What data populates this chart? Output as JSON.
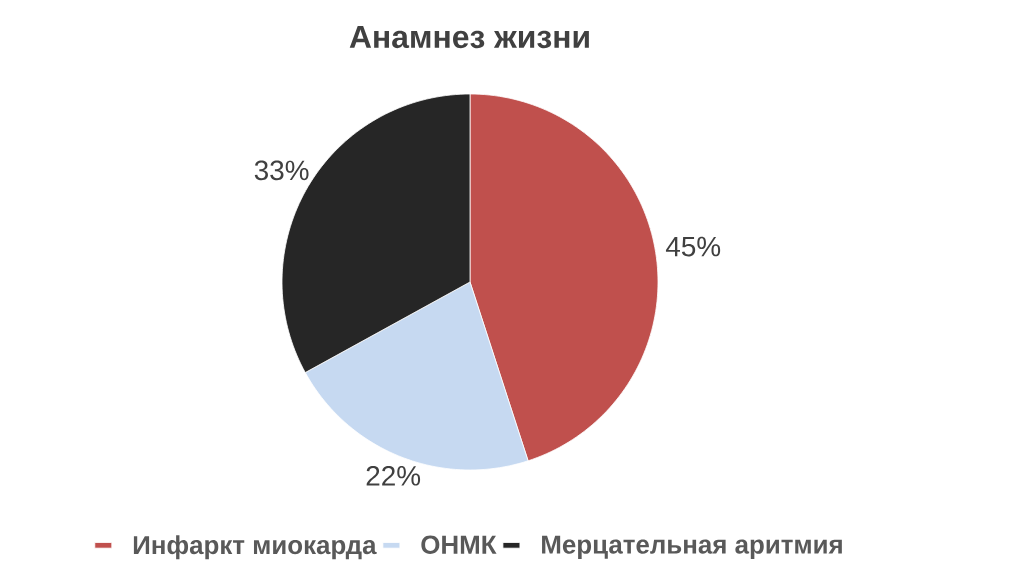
{
  "chart_data": {
    "type": "pie",
    "title": "Анамнез жизни",
    "categories": [
      "Инфаркт миокарда",
      "ОНМК",
      "Мерцательная аритмия"
    ],
    "values": [
      45,
      22,
      33
    ],
    "colors": [
      "#c0504d",
      "#c6d9f1",
      "#262626"
    ],
    "value_labels": [
      "45%",
      "22%",
      "33%"
    ],
    "legend": "bottom"
  }
}
